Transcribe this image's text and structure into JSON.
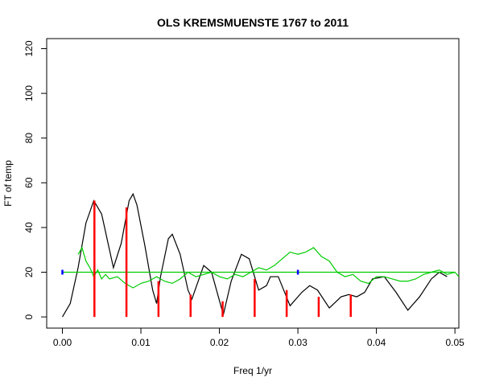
{
  "chart_data": {
    "type": "line",
    "title": "OLS KREMSMUENSTE 1767 to 2011",
    "xlabel": "Freq 1/yr",
    "ylabel": "FT of temp",
    "xlim": [
      -0.002,
      0.0505
    ],
    "ylim": [
      -5,
      124.5
    ],
    "xticks": [
      {
        "value": 0,
        "label": "0.00"
      },
      0.01,
      0.02,
      0.03,
      0.04,
      0.05
    ],
    "yticks": [
      0,
      20,
      40,
      60,
      80,
      100,
      120
    ],
    "series": [
      {
        "kind": "line",
        "color": "#000000",
        "x": [
          0,
          0.001,
          0.002,
          0.003,
          0.004,
          0.005,
          0.006,
          0.0065,
          0.0075,
          0.0085,
          0.009,
          0.0095,
          0.0105,
          0.0115,
          0.012,
          0.0125,
          0.0135,
          0.014,
          0.015,
          0.016,
          0.0165,
          0.0175,
          0.018,
          0.019,
          0.0205,
          0.0215,
          0.0228,
          0.0238,
          0.025,
          0.026,
          0.0265,
          0.0275,
          0.029,
          0.0305,
          0.0315,
          0.0325,
          0.034,
          0.0355,
          0.0365,
          0.0375,
          0.0385,
          0.0395,
          0.041,
          0.0425,
          0.044,
          0.0455,
          0.047,
          0.048,
          0.049
        ],
        "values": [
          0,
          6,
          22,
          42,
          52,
          46,
          30,
          22,
          33,
          52,
          55,
          50,
          32,
          12,
          6,
          18,
          35,
          37,
          28,
          12,
          8,
          18,
          23,
          20,
          1,
          16,
          28,
          26,
          12,
          14,
          18,
          18,
          5,
          11,
          14,
          12,
          4,
          9,
          10,
          9,
          11,
          17,
          18,
          11,
          3,
          9,
          17,
          20,
          18
        ]
      },
      {
        "kind": "line",
        "color": "#00cc00",
        "x": [
          0.002,
          0.0025,
          0.003,
          0.0035,
          0.004,
          0.0045,
          0.005,
          0.0055,
          0.006,
          0.007,
          0.008,
          0.009,
          0.01,
          0.011,
          0.012,
          0.013,
          0.014,
          0.015,
          0.016,
          0.017,
          0.018,
          0.019,
          0.02,
          0.021,
          0.022,
          0.023,
          0.024,
          0.025,
          0.026,
          0.027,
          0.028,
          0.029,
          0.03,
          0.031,
          0.032,
          0.033,
          0.034,
          0.035,
          0.036,
          0.037,
          0.038,
          0.039,
          0.04,
          0.041,
          0.042,
          0.043,
          0.044,
          0.045,
          0.046,
          0.047,
          0.048,
          0.049,
          0.05,
          0.0505
        ],
        "values": [
          28,
          31,
          25,
          22,
          18,
          21,
          17,
          19,
          17,
          18,
          15,
          13,
          15,
          16,
          18,
          16,
          15,
          17,
          20,
          18,
          19,
          20,
          18,
          17,
          19,
          18,
          20,
          22,
          21,
          23,
          26,
          29,
          28,
          29,
          31,
          27,
          25,
          20,
          18,
          19,
          16,
          15,
          18,
          18,
          17,
          16,
          16,
          17,
          19,
          20,
          21,
          19,
          20,
          18
        ]
      },
      {
        "kind": "line",
        "color": "#00cc00",
        "x": [
          0,
          0.05
        ],
        "values": [
          20,
          20
        ]
      },
      {
        "kind": "h",
        "color": "#ff0000",
        "x": [
          0.00408,
          0.00816,
          0.01224,
          0.01633,
          0.02041,
          0.02449,
          0.02857,
          0.03265,
          0.03673
        ],
        "values": [
          52,
          49,
          16,
          10,
          7,
          17,
          12,
          9,
          10
        ]
      },
      {
        "kind": "points",
        "color": "#0000ff",
        "x": [
          0,
          0.03
        ],
        "values": [
          20,
          20
        ]
      }
    ]
  }
}
